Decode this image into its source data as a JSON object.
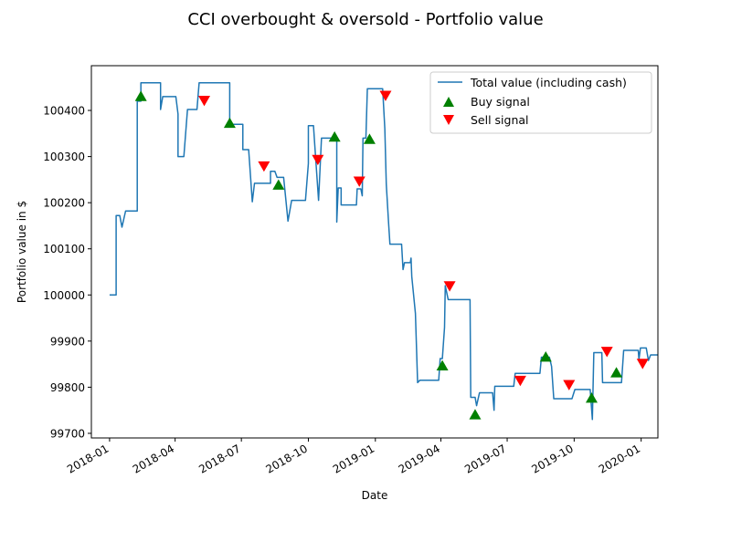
{
  "chart_data": {
    "type": "line",
    "title": "CCI overbought & oversold - Portfolio value",
    "xlabel": "Date",
    "ylabel": "Portfolio value in $",
    "xlim": [
      "2017-12-07",
      "2020-01-24"
    ],
    "ylim": [
      99690,
      100497
    ],
    "x_ticks": [
      "2018-01-01",
      "2018-04-01",
      "2018-07-01",
      "2018-10-01",
      "2019-01-01",
      "2019-04-01",
      "2019-07-01",
      "2019-10-01",
      "2020-01-01"
    ],
    "x_tick_labels": [
      "2018-01",
      "2018-04",
      "2018-07",
      "2018-10",
      "2019-01",
      "2019-04",
      "2019-07",
      "2019-10",
      "2020-01"
    ],
    "y_ticks": [
      99700,
      99800,
      99900,
      100000,
      100100,
      100200,
      100300,
      100400
    ],
    "grid": false,
    "legend_position": "top-right",
    "colors": {
      "line": "#1f77b4",
      "buy": "#008000",
      "sell": "#ff0000"
    },
    "series": [
      {
        "name": "Total value (including cash)",
        "kind": "line",
        "points": [
          [
            "2018-01-01",
            100000
          ],
          [
            "2018-01-10",
            100000
          ],
          [
            "2018-01-10",
            100172
          ],
          [
            "2018-01-15",
            100172
          ],
          [
            "2018-01-18",
            100147
          ],
          [
            "2018-01-23",
            100182
          ],
          [
            "2018-02-08",
            100182
          ],
          [
            "2018-02-08",
            100420
          ],
          [
            "2018-02-13",
            100420
          ],
          [
            "2018-02-13",
            100460
          ],
          [
            "2018-03-12",
            100460
          ],
          [
            "2018-03-12",
            100402
          ],
          [
            "2018-03-15",
            100430
          ],
          [
            "2018-04-02",
            100430
          ],
          [
            "2018-04-05",
            100392
          ],
          [
            "2018-04-05",
            100300
          ],
          [
            "2018-04-13",
            100300
          ],
          [
            "2018-04-18",
            100402
          ],
          [
            "2018-05-01",
            100402
          ],
          [
            "2018-05-04",
            100460
          ],
          [
            "2018-06-15",
            100460
          ],
          [
            "2018-06-15",
            100370
          ],
          [
            "2018-07-03",
            100370
          ],
          [
            "2018-07-03",
            100315
          ],
          [
            "2018-07-11",
            100315
          ],
          [
            "2018-07-16",
            100202
          ],
          [
            "2018-07-19",
            100242
          ],
          [
            "2018-08-10",
            100242
          ],
          [
            "2018-08-10",
            100268
          ],
          [
            "2018-08-16",
            100268
          ],
          [
            "2018-08-19",
            100255
          ],
          [
            "2018-08-28",
            100255
          ],
          [
            "2018-09-03",
            100160
          ],
          [
            "2018-09-08",
            100205
          ],
          [
            "2018-09-27",
            100205
          ],
          [
            "2018-10-01",
            100285
          ],
          [
            "2018-10-01",
            100367
          ],
          [
            "2018-10-08",
            100367
          ],
          [
            "2018-10-10",
            100320
          ],
          [
            "2018-10-15",
            100205
          ],
          [
            "2018-10-19",
            100340
          ],
          [
            "2018-11-09",
            100340
          ],
          [
            "2018-11-09",
            100158
          ],
          [
            "2018-11-11",
            100232
          ],
          [
            "2018-11-15",
            100232
          ],
          [
            "2018-11-15",
            100195
          ],
          [
            "2018-12-06",
            100195
          ],
          [
            "2018-12-07",
            100230
          ],
          [
            "2018-12-12",
            100230
          ],
          [
            "2018-12-14",
            100215
          ],
          [
            "2018-12-15",
            100340
          ],
          [
            "2018-12-19",
            100340
          ],
          [
            "2018-12-21",
            100447
          ],
          [
            "2019-01-11",
            100447
          ],
          [
            "2019-01-14",
            100360
          ],
          [
            "2019-01-16",
            100240
          ],
          [
            "2019-01-19",
            100160
          ],
          [
            "2019-01-21",
            100110
          ],
          [
            "2019-02-06",
            100110
          ],
          [
            "2019-02-08",
            100055
          ],
          [
            "2019-02-10",
            100070
          ],
          [
            "2019-02-18",
            100070
          ],
          [
            "2019-02-19",
            100080
          ],
          [
            "2019-02-20",
            100040
          ],
          [
            "2019-02-25",
            99960
          ],
          [
            "2019-02-28",
            99810
          ],
          [
            "2019-03-03",
            99815
          ],
          [
            "2019-03-29",
            99815
          ],
          [
            "2019-03-31",
            99862
          ],
          [
            "2019-04-03",
            99862
          ],
          [
            "2019-04-06",
            99930
          ],
          [
            "2019-04-07",
            100020
          ],
          [
            "2019-04-11",
            99990
          ],
          [
            "2019-05-11",
            99990
          ],
          [
            "2019-05-12",
            99778
          ],
          [
            "2019-05-18",
            99778
          ],
          [
            "2019-05-20",
            99760
          ],
          [
            "2019-05-24",
            99788
          ],
          [
            "2019-06-11",
            99788
          ],
          [
            "2019-06-13",
            99750
          ],
          [
            "2019-06-14",
            99802
          ],
          [
            "2019-07-10",
            99802
          ],
          [
            "2019-07-12",
            99830
          ],
          [
            "2019-08-15",
            99830
          ],
          [
            "2019-08-17",
            99865
          ],
          [
            "2019-08-28",
            99865
          ],
          [
            "2019-08-31",
            99845
          ],
          [
            "2019-09-03",
            99775
          ],
          [
            "2019-09-28",
            99775
          ],
          [
            "2019-10-02",
            99795
          ],
          [
            "2019-10-23",
            99795
          ],
          [
            "2019-10-26",
            99730
          ],
          [
            "2019-10-28",
            99875
          ],
          [
            "2019-11-08",
            99875
          ],
          [
            "2019-11-09",
            99810
          ],
          [
            "2019-12-05",
            99810
          ],
          [
            "2019-12-08",
            99880
          ],
          [
            "2019-12-28",
            99880
          ],
          [
            "2019-12-29",
            99860
          ],
          [
            "2019-12-31",
            99885
          ],
          [
            "2020-01-08",
            99885
          ],
          [
            "2020-01-11",
            99858
          ],
          [
            "2020-01-14",
            99870
          ],
          [
            "2020-01-24",
            99870
          ]
        ]
      },
      {
        "name": "Buy signal",
        "kind": "marker-up",
        "points": [
          [
            "2018-02-13",
            100430
          ],
          [
            "2018-06-15",
            100372
          ],
          [
            "2018-08-21",
            100238
          ],
          [
            "2018-11-06",
            100342
          ],
          [
            "2018-12-24",
            100337
          ],
          [
            "2019-04-03",
            99846
          ],
          [
            "2019-05-18",
            99740
          ],
          [
            "2019-08-23",
            99865
          ],
          [
            "2019-10-25",
            99776
          ],
          [
            "2019-11-28",
            99831
          ]
        ]
      },
      {
        "name": "Sell signal",
        "kind": "marker-down",
        "points": [
          [
            "2018-05-11",
            100422
          ],
          [
            "2018-08-01",
            100280
          ],
          [
            "2018-10-14",
            100294
          ],
          [
            "2018-12-10",
            100247
          ],
          [
            "2019-01-15",
            100433
          ],
          [
            "2019-04-13",
            100020
          ],
          [
            "2019-07-19",
            99815
          ],
          [
            "2019-09-24",
            99806
          ],
          [
            "2019-11-15",
            99878
          ],
          [
            "2020-01-03",
            99852
          ]
        ]
      }
    ]
  }
}
